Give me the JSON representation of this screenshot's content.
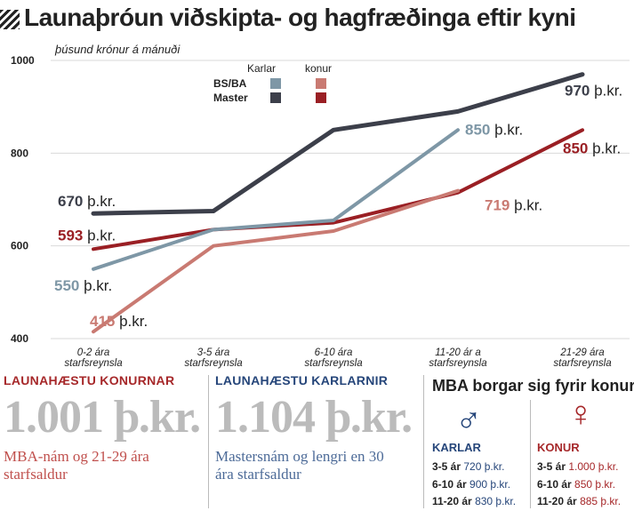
{
  "title": "Launaþróun viðskipta- og hagfræðinga eftir kyni",
  "unit_label": "þúsund krónur á mánuði",
  "colors": {
    "bsba_karlar": "#7e97a6",
    "bsba_konur": "#c97a72",
    "master_karlar": "#3c3f4a",
    "master_konur": "#9a1f24",
    "red_heading": "#a6282a",
    "blue_heading": "#26467a"
  },
  "chart_data": {
    "type": "line",
    "title": "Launaþróun viðskipta- og hagfræðinga eftir kyni",
    "ylabel": "þúsund krónur á mánuði",
    "xlabel": "",
    "ylim": [
      400,
      1000
    ],
    "yticks": [
      400,
      600,
      800,
      1000
    ],
    "grid": true,
    "categories": [
      "0-2 ára starfsreynsla",
      "3-5 ára starfsreynsla",
      "6-10 ára starfsreynsla",
      "11-20 ár a starfsreynsla",
      "21-29 ára starfsreynsla"
    ],
    "category_lines": [
      [
        "0-2 ára",
        "starfsreynsla"
      ],
      [
        "3-5 ára",
        "starfsreynsla"
      ],
      [
        "6-10 ára",
        "starfsreynsla"
      ],
      [
        "11-20 ár a",
        "starfsreynsla"
      ],
      [
        "21-29 ára",
        "starfsreynsla"
      ]
    ],
    "legend": {
      "placement": "top-center",
      "col_headers": [
        "Karlar",
        "konur"
      ],
      "row_labels": [
        "BS/BA",
        "Master"
      ]
    },
    "series": [
      {
        "key": "master_karlar",
        "values": [
          670,
          675,
          850,
          890,
          970
        ]
      },
      {
        "key": "master_konur",
        "values": [
          593,
          635,
          650,
          715,
          850
        ]
      },
      {
        "key": "bsba_karlar",
        "values": [
          550,
          635,
          655,
          850,
          null
        ]
      },
      {
        "key": "bsba_konur",
        "values": [
          415,
          600,
          632,
          719,
          null
        ]
      }
    ],
    "annotations": [
      {
        "text": "670 þ.kr.",
        "series": "master_karlar",
        "x": 0,
        "y": 670
      },
      {
        "text": "593 þ.kr.",
        "series": "master_konur",
        "x": 0,
        "y": 593
      },
      {
        "text": "550 þ.kr.",
        "series": "bsba_karlar",
        "x": 0,
        "y": 550
      },
      {
        "text": "415 þ.kr.",
        "series": "bsba_konur",
        "x": 0,
        "y": 415
      },
      {
        "text": "850 þ.kr.",
        "series": "bsba_karlar",
        "x": 3,
        "y": 850
      },
      {
        "text": "719 þ.kr.",
        "series": "bsba_konur",
        "x": 3,
        "y": 719
      },
      {
        "text": "970 þ.kr.",
        "series": "master_karlar",
        "x": 4,
        "y": 970
      },
      {
        "text": "850 þ.kr.",
        "series": "master_konur",
        "x": 4,
        "y": 850
      }
    ]
  },
  "panel_women": {
    "heading": "LAUNAHÆSTU KONURNAR",
    "amount": "1.001 þ.kr.",
    "desc_line1": "MBA-nám og 21-29 ára",
    "desc_line2": "starfsaldur"
  },
  "panel_men": {
    "heading": "LAUNAHÆSTU KARLARNIR",
    "amount": "1.104 þ.kr.",
    "desc_line1": "Mastersnám og lengri en 30",
    "desc_line2": "ára starfsaldur"
  },
  "mba": {
    "title": "MBA borgar sig fyrir konur",
    "men": {
      "symbol": "♂",
      "label": "KARLAR",
      "rows": [
        {
          "years": "3-5 ár",
          "amount": "720 þ.kr."
        },
        {
          "years": "6-10 ár",
          "amount": "900 þ.kr."
        },
        {
          "years": "11-20 ár",
          "amount": "830 þ.kr."
        }
      ]
    },
    "women": {
      "symbol": "♀",
      "label": "KONUR",
      "rows": [
        {
          "years": "3-5 ár",
          "amount": "1.000 þ.kr."
        },
        {
          "years": "6-10 ár",
          "amount": "850 þ.kr."
        },
        {
          "years": "11-20 ár",
          "amount": "885 þ.kr."
        }
      ]
    }
  }
}
